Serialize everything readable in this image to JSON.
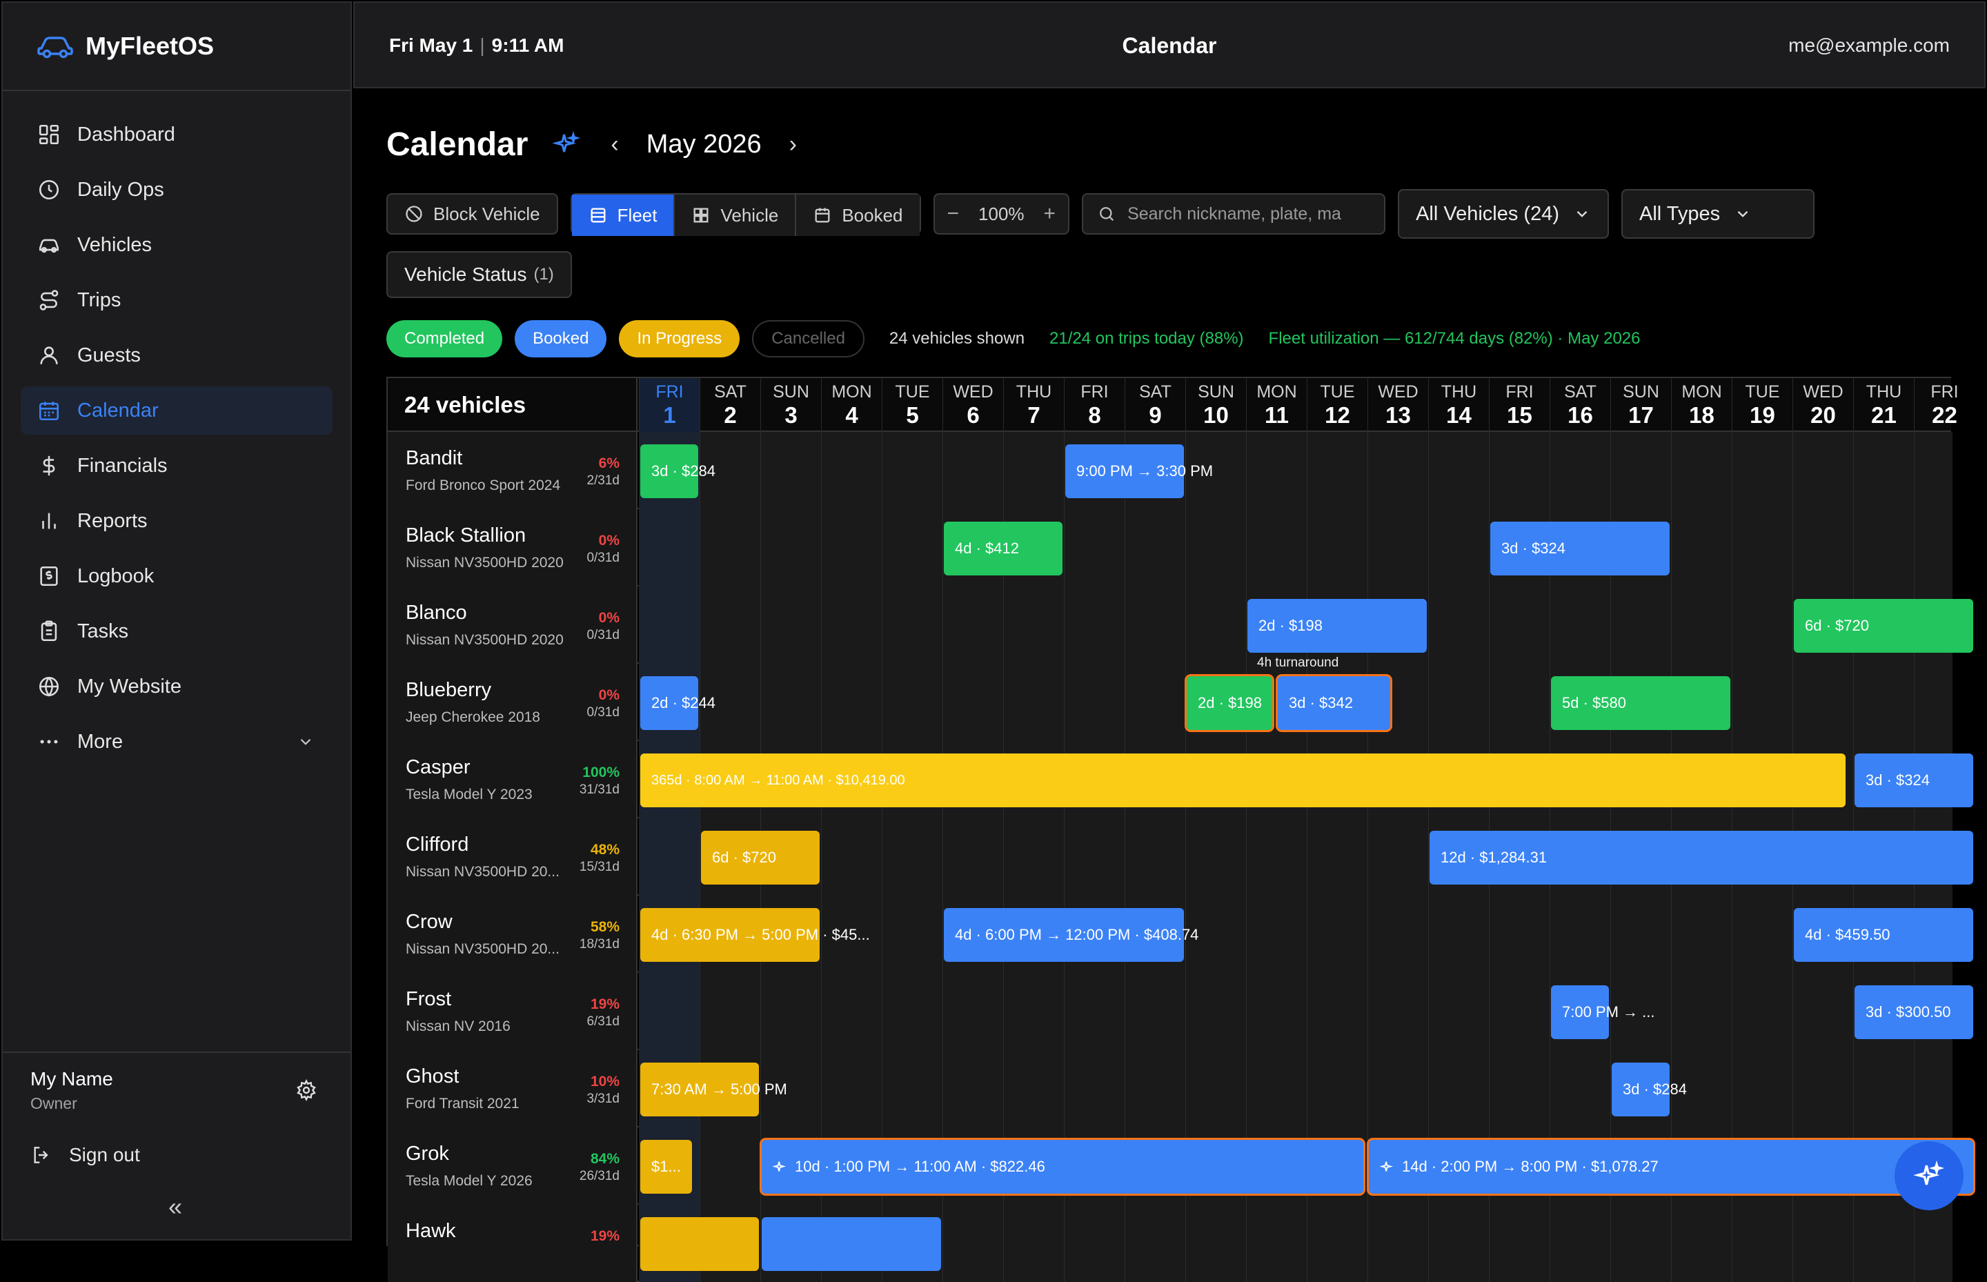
{
  "brand": {
    "name": "MyFleetOS"
  },
  "sidebar": {
    "items": [
      {
        "label": "Dashboard",
        "icon": "dashboard-icon"
      },
      {
        "label": "Daily Ops",
        "icon": "clock-icon"
      },
      {
        "label": "Vehicles",
        "icon": "car-icon"
      },
      {
        "label": "Trips",
        "icon": "route-icon"
      },
      {
        "label": "Guests",
        "icon": "user-icon"
      },
      {
        "label": "Calendar",
        "icon": "calendar-icon",
        "active": true
      },
      {
        "label": "Financials",
        "icon": "dollar-icon"
      },
      {
        "label": "Reports",
        "icon": "bar-chart-icon"
      },
      {
        "label": "Logbook",
        "icon": "logbook-icon"
      },
      {
        "label": "Tasks",
        "icon": "clipboard-icon"
      },
      {
        "label": "My Website",
        "icon": "globe-icon"
      },
      {
        "label": "More",
        "icon": "more-icon"
      }
    ],
    "user": {
      "name": "My Name",
      "role": "Owner"
    },
    "sign_out": "Sign out",
    "collapse": "«"
  },
  "header": {
    "date": "Fri May 1",
    "sep": "|",
    "time": "9:11 AM",
    "title": "Calendar",
    "email": "me@example.com"
  },
  "page": {
    "title": "Calendar",
    "prev": "‹",
    "month": "May 2026",
    "next": "›"
  },
  "toolbar": {
    "block_vehicle": "Block Vehicle",
    "views": [
      "Fleet",
      "Vehicle",
      "Booked"
    ],
    "active_view": "Fleet",
    "zoom_minus": "−",
    "zoom": "100%",
    "zoom_plus": "+",
    "search_placeholder": "Search nickname, plate, ma",
    "vehicles_filter": "All Vehicles (24)",
    "types_filter": "All Types",
    "status_filter": "Vehicle Status",
    "status_count": "(1)"
  },
  "legend": {
    "completed": "Completed",
    "booked": "Booked",
    "in_progress": "In Progress",
    "cancelled": "Cancelled",
    "shown": "24 vehicles shown",
    "on_trips": "21/24 on trips today (88%)",
    "utilization": "Fleet utilization — 612/744 days (82%) · May 2026"
  },
  "colors": {
    "completed": "#22c55e",
    "booked": "#3b82f6",
    "in_progress": "#eab308",
    "accent": "#2563eb",
    "turnaround_outline": "#f97316",
    "pct_low": "#ef4444",
    "pct_mid": "#eab308",
    "pct_high": "#22c55e"
  },
  "grid": {
    "vehicle_count": "24 vehicles",
    "days": [
      {
        "dow": "FRI",
        "d": "1",
        "today": true
      },
      {
        "dow": "SAT",
        "d": "2"
      },
      {
        "dow": "SUN",
        "d": "3"
      },
      {
        "dow": "MON",
        "d": "4"
      },
      {
        "dow": "TUE",
        "d": "5"
      },
      {
        "dow": "WED",
        "d": "6"
      },
      {
        "dow": "THU",
        "d": "7"
      },
      {
        "dow": "FRI",
        "d": "8"
      },
      {
        "dow": "SAT",
        "d": "9"
      },
      {
        "dow": "SUN",
        "d": "10"
      },
      {
        "dow": "MON",
        "d": "11"
      },
      {
        "dow": "TUE",
        "d": "12"
      },
      {
        "dow": "WED",
        "d": "13"
      },
      {
        "dow": "THU",
        "d": "14"
      },
      {
        "dow": "FRI",
        "d": "15"
      },
      {
        "dow": "SAT",
        "d": "16"
      },
      {
        "dow": "SUN",
        "d": "17"
      },
      {
        "dow": "MON",
        "d": "18"
      },
      {
        "dow": "TUE",
        "d": "19"
      },
      {
        "dow": "WED",
        "d": "20"
      },
      {
        "dow": "THU",
        "d": "21"
      },
      {
        "dow": "FRI",
        "d": "22"
      }
    ],
    "turnaround_label": "4h turnaround",
    "vehicles": [
      {
        "name": "Bandit",
        "model": "Ford Bronco Sport 2024",
        "pct": "6%",
        "level": "low",
        "days": "2/31d",
        "trips": [
          {
            "label": "3d · $284",
            "status": "completed",
            "start": 1,
            "end": 2
          },
          {
            "label": "9:00 PM → 3:30 PM",
            "status": "booked",
            "start": 8.0,
            "end": 10.0
          }
        ]
      },
      {
        "name": "Black Stallion",
        "model": "Nissan NV3500HD 2020",
        "pct": "0%",
        "level": "low",
        "days": "0/31d",
        "trips": [
          {
            "label": "4d · $412",
            "status": "completed",
            "start": 6,
            "end": 8
          },
          {
            "label": "3d · $324",
            "status": "booked",
            "start": 15,
            "end": 18
          }
        ]
      },
      {
        "name": "Blanco",
        "model": "Nissan NV3500HD 2020",
        "pct": "0%",
        "level": "low",
        "days": "0/31d",
        "trips": [
          {
            "label": "2d · $198",
            "status": "booked",
            "start": 11,
            "end": 14
          },
          {
            "label": "6d · $720",
            "status": "completed",
            "start": 20,
            "end": 23
          }
        ]
      },
      {
        "name": "Blueberry",
        "model": "Jeep Cherokee 2018",
        "pct": "0%",
        "level": "low",
        "days": "0/31d",
        "trips": [
          {
            "label": "2d · $244",
            "status": "booked",
            "start": 1,
            "end": 2
          },
          {
            "label": "2d · $198",
            "status": "completed",
            "start": 10,
            "end": 11.45,
            "outline": true
          },
          {
            "label": "3d · $342",
            "status": "booked",
            "start": 11.5,
            "end": 13.4,
            "outline": true,
            "turnaround": true
          },
          {
            "label": "5d · $580",
            "status": "completed",
            "start": 16,
            "end": 19
          }
        ]
      },
      {
        "name": "Casper",
        "model": "Tesla Model Y 2023",
        "pct": "100%",
        "level": "high",
        "days": "31/31d",
        "trips": [
          {
            "label": "365d · 8:00 AM → 11:00 AM · $10,419.00",
            "status": "in_progress",
            "start": 1,
            "end": 20.9,
            "small": true
          },
          {
            "label": "3d · $324",
            "status": "booked",
            "start": 21,
            "end": 23
          }
        ]
      },
      {
        "name": "Clifford",
        "model": "Nissan NV3500HD 20...",
        "pct": "48%",
        "level": "mid",
        "days": "15/31d",
        "trips": [
          {
            "label": "6d · $720",
            "status": "in_progress",
            "start": 2,
            "end": 4
          },
          {
            "label": "12d · $1,284.31",
            "status": "booked",
            "start": 14,
            "end": 23
          }
        ]
      },
      {
        "name": "Crow",
        "model": "Nissan NV3500HD 20...",
        "pct": "58%",
        "level": "mid",
        "days": "18/31d",
        "trips": [
          {
            "label": "4d · 6:30 PM → 5:00 PM · $45...",
            "status": "in_progress",
            "start": 1,
            "end": 4
          },
          {
            "label": "4d · 6:00 PM → 12:00 PM · $408.74",
            "status": "booked",
            "start": 6,
            "end": 10
          },
          {
            "label": "4d · $459.50",
            "status": "booked",
            "start": 20,
            "end": 23
          }
        ]
      },
      {
        "name": "Frost",
        "model": "Nissan NV 2016",
        "pct": "19%",
        "level": "low",
        "days": "6/31d",
        "trips": [
          {
            "label": "7:00 PM → ...",
            "status": "booked",
            "start": 16,
            "end": 17
          },
          {
            "label": "3d · $300.50",
            "status": "booked",
            "start": 21,
            "end": 23
          }
        ]
      },
      {
        "name": "Ghost",
        "model": "Ford Transit 2021",
        "pct": "10%",
        "level": "low",
        "days": "3/31d",
        "trips": [
          {
            "label": "7:30 AM → 5:00 PM",
            "status": "in_progress",
            "start": 1,
            "end": 3
          },
          {
            "label": "3d · $284",
            "status": "booked",
            "start": 17,
            "end": 18
          }
        ]
      },
      {
        "name": "Grok",
        "model": "Tesla Model Y 2026",
        "pct": "84%",
        "level": "high",
        "days": "26/31d",
        "trips": [
          {
            "label": "$1...",
            "status": "in_progress",
            "start": 1,
            "end": 1.9
          },
          {
            "label": "10d · 1:00 PM → 11:00 AM · $822.46",
            "status": "booked",
            "start": 3,
            "end": 12.95,
            "outline": true,
            "sparkle": true
          },
          {
            "label": "14d · 2:00 PM → 8:00 PM · $1,078.27",
            "status": "booked",
            "start": 13,
            "end": 23,
            "outline": true,
            "sparkle": true
          }
        ]
      },
      {
        "name": "Hawk",
        "model": "",
        "pct": "19%",
        "level": "low",
        "days": "",
        "trips": [
          {
            "label": "",
            "status": "in_progress",
            "start": 1,
            "end": 3
          },
          {
            "label": "",
            "status": "booked",
            "start": 3,
            "end": 6
          }
        ]
      }
    ]
  }
}
